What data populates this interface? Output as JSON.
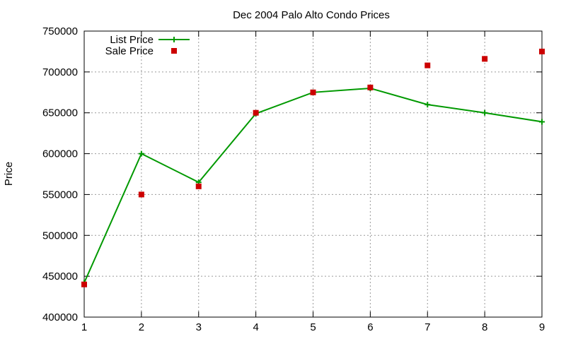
{
  "chart_data": {
    "type": "line",
    "title": "Dec 2004 Palo Alto Condo Prices",
    "xlabel": "",
    "ylabel": "Price",
    "xlim": [
      1,
      9
    ],
    "ylim": [
      400000,
      750000
    ],
    "x_ticks": [
      1,
      2,
      3,
      4,
      5,
      6,
      7,
      8,
      9
    ],
    "y_ticks": [
      400000,
      450000,
      500000,
      550000,
      600000,
      650000,
      700000,
      750000
    ],
    "grid": true,
    "legend_position": "top-left",
    "series": [
      {
        "name": "List Price",
        "style": "line-with-plus-markers",
        "color": "#009900",
        "points": [
          {
            "x": 1,
            "y": 442000
          },
          {
            "x": 2,
            "y": 600000
          },
          {
            "x": 3,
            "y": 565000
          },
          {
            "x": 4,
            "y": 649000
          },
          {
            "x": 5,
            "y": 675000
          },
          {
            "x": 6,
            "y": 680000
          },
          {
            "x": 7,
            "y": 660000
          },
          {
            "x": 8,
            "y": 650000
          },
          {
            "x": 9,
            "y": 639000
          }
        ]
      },
      {
        "name": "Sale Price",
        "style": "square-markers",
        "color": "#cc0000",
        "points": [
          {
            "x": 1,
            "y": 440000
          },
          {
            "x": 2,
            "y": 550000
          },
          {
            "x": 3,
            "y": 560000
          },
          {
            "x": 4,
            "y": 650000
          },
          {
            "x": 5,
            "y": 675000
          },
          {
            "x": 6,
            "y": 681000
          },
          {
            "x": 7,
            "y": 708000
          },
          {
            "x": 8,
            "y": 716000
          },
          {
            "x": 9,
            "y": 725000
          }
        ]
      }
    ]
  }
}
